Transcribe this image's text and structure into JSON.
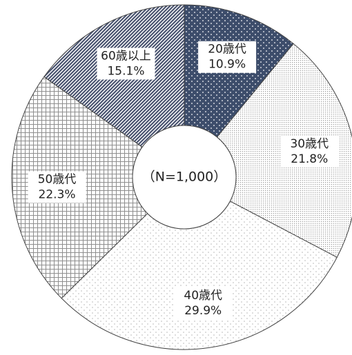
{
  "chart_data": {
    "type": "donut",
    "categories": [
      "20歳代",
      "30歳代",
      "40歳代",
      "50歳代",
      "60歳以上"
    ],
    "values": [
      10.9,
      21.8,
      29.9,
      22.3,
      15.1
    ],
    "value_labels": [
      "10.9%",
      "21.8%",
      "29.9%",
      "22.3%",
      "15.1%"
    ],
    "colors": [
      "#3d4d6b",
      "#9a9a9a",
      "#b5b5b5",
      "#8e8e8e",
      "#4a5470"
    ],
    "center_label": "（N=1,000）"
  }
}
